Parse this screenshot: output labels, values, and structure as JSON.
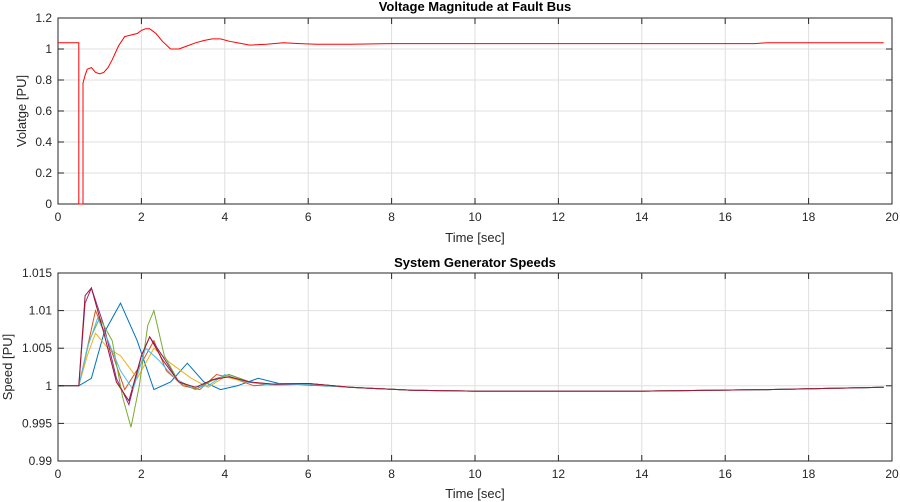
{
  "chart_data": [
    {
      "type": "line",
      "title": "Voltage Magnitude at Fault Bus",
      "xlabel": "Time [sec]",
      "ylabel": "Volatge [PU]",
      "xlim": [
        0,
        20
      ],
      "ylim": [
        0,
        1.2
      ],
      "xticks": [
        "0",
        "2",
        "4",
        "6",
        "8",
        "10",
        "12",
        "14",
        "16",
        "18",
        "20"
      ],
      "yticks": [
        "0",
        "0.2",
        "0.4",
        "0.6",
        "0.8",
        "1",
        "1.2"
      ],
      "grid": true,
      "series": [
        {
          "color": "#ff0000",
          "x": [
            0,
            0.5,
            0.5,
            0.6,
            0.6,
            0.65,
            0.7,
            0.8,
            0.9,
            1.0,
            1.1,
            1.2,
            1.3,
            1.45,
            1.6,
            1.75,
            1.9,
            2.0,
            2.1,
            2.2,
            2.35,
            2.5,
            2.7,
            2.9,
            3.1,
            3.3,
            3.5,
            3.7,
            3.9,
            4.1,
            4.3,
            4.6,
            5.0,
            5.4,
            5.8,
            6.2,
            7.0,
            8.0,
            10.0,
            12.0,
            14.0,
            16.0,
            16.7,
            17.0,
            18.0,
            19.8
          ],
          "y": [
            1.04,
            1.04,
            0,
            0,
            0.78,
            0.83,
            0.87,
            0.88,
            0.85,
            0.84,
            0.85,
            0.88,
            0.93,
            1.02,
            1.08,
            1.09,
            1.1,
            1.12,
            1.13,
            1.13,
            1.1,
            1.05,
            1.0,
            1.0,
            1.02,
            1.04,
            1.055,
            1.065,
            1.065,
            1.05,
            1.04,
            1.025,
            1.03,
            1.04,
            1.035,
            1.03,
            1.03,
            1.035,
            1.035,
            1.035,
            1.035,
            1.035,
            1.035,
            1.04,
            1.04,
            1.04
          ]
        }
      ]
    },
    {
      "type": "line",
      "title": "System Generator Speeds",
      "xlabel": "Time [sec]",
      "ylabel": "Speed [PU]",
      "xlim": [
        0,
        20
      ],
      "ylim": [
        0.99,
        1.015
      ],
      "xticks": [
        "0",
        "2",
        "4",
        "6",
        "8",
        "10",
        "12",
        "14",
        "16",
        "18",
        "20"
      ],
      "yticks": [
        "0.99",
        "0.995",
        "1",
        "1.005",
        "1.01",
        "1.015"
      ],
      "grid": true,
      "series": [
        {
          "color": "#0072bd",
          "x": [
            0,
            0.5,
            0.8,
            1.1,
            1.5,
            1.9,
            2.3,
            2.7,
            3.1,
            3.5,
            3.9,
            4.3,
            4.8,
            5.3,
            6.0,
            7.0,
            8.5,
            10.0,
            14.0,
            17.0,
            19.8
          ],
          "y": [
            1.0,
            1.0,
            1.001,
            1.007,
            1.011,
            1.006,
            0.9995,
            1.0005,
            1.003,
            1.0005,
            0.9995,
            1.0,
            1.001,
            1.0003,
            1.0001,
            0.9998,
            0.9994,
            0.9993,
            0.9993,
            0.9995,
            0.9998
          ]
        },
        {
          "color": "#d95319",
          "x": [
            0,
            0.5,
            0.7,
            0.9,
            1.2,
            1.6,
            2.0,
            2.3,
            2.6,
            3.0,
            3.4,
            3.8,
            4.2,
            4.7,
            5.3,
            6.0,
            7.0,
            8.5,
            10.0,
            14.0,
            17.0,
            19.8
          ],
          "y": [
            1.0,
            1.0,
            1.005,
            1.01,
            1.006,
            0.9995,
            1.003,
            1.006,
            1.002,
            1.0,
            0.9995,
            1.0015,
            1.001,
            1.0,
            1.0003,
            1.0003,
            0.9998,
            0.9994,
            0.9993,
            0.9993,
            0.9995,
            0.9998
          ]
        },
        {
          "color": "#edb120",
          "x": [
            0,
            0.5,
            0.7,
            0.9,
            1.2,
            1.5,
            1.9,
            2.3,
            2.7,
            3.2,
            3.6,
            4.0,
            4.5,
            5.2,
            6.0,
            7.0,
            8.5,
            10.0,
            14.0,
            17.0,
            19.8
          ],
          "y": [
            1.0,
            1.0,
            1.004,
            1.007,
            1.005,
            1.004,
            1.001,
            1.005,
            1.003,
            1.001,
            0.9998,
            1.0012,
            1.0005,
            1.0002,
            1.0002,
            0.9998,
            0.9994,
            0.9993,
            0.9993,
            0.9995,
            0.9998
          ]
        },
        {
          "color": "#7e2f8e",
          "x": [
            0,
            0.5,
            0.65,
            0.8,
            1.1,
            1.4,
            1.7,
            2.0,
            2.2,
            2.5,
            2.9,
            3.3,
            3.7,
            4.1,
            4.6,
            5.2,
            6.0,
            7.0,
            8.5,
            10.0,
            14.0,
            17.0,
            19.8
          ],
          "y": [
            1.0,
            1.0,
            1.011,
            1.013,
            1.008,
            1.001,
            0.9975,
            1.004,
            1.0065,
            1.004,
            1.0005,
            0.9995,
            1.0008,
            1.0015,
            1.0005,
            1.0001,
            1.0003,
            0.9998,
            0.9994,
            0.9993,
            0.9993,
            0.9995,
            0.9998
          ]
        },
        {
          "color": "#77ac30",
          "x": [
            0,
            0.5,
            0.75,
            1.0,
            1.3,
            1.55,
            1.75,
            1.95,
            2.15,
            2.3,
            2.55,
            2.9,
            3.3,
            3.7,
            4.1,
            4.6,
            5.2,
            6.0,
            7.0,
            8.5,
            10.0,
            14.0,
            17.0,
            19.8
          ],
          "y": [
            1.0,
            1.0,
            1.006,
            1.009,
            1.006,
            0.9985,
            0.9945,
            1.0,
            1.008,
            1.01,
            1.004,
            1.0005,
            0.9995,
            1.0007,
            1.0015,
            1.0005,
            1.0001,
            1.0002,
            0.9998,
            0.9994,
            0.9993,
            0.9993,
            0.9995,
            0.9998
          ]
        },
        {
          "color": "#4dbeee",
          "x": [
            0,
            0.5,
            0.7,
            0.95,
            1.2,
            1.5,
            1.8,
            2.1,
            2.4,
            2.8,
            3.2,
            3.6,
            4.0,
            4.5,
            5.1,
            6.0,
            7.0,
            8.5,
            10.0,
            14.0,
            17.0,
            19.8
          ],
          "y": [
            1.0,
            1.0,
            1.005,
            1.009,
            1.006,
            1.002,
            0.9995,
            1.005,
            1.0035,
            1.001,
            0.9998,
            1.0,
            1.0015,
            1.0005,
            1.0001,
            1.0002,
            0.9998,
            0.9994,
            0.9993,
            0.9993,
            0.9995,
            0.9998
          ]
        },
        {
          "color": "#a2142f",
          "x": [
            0,
            0.5,
            0.65,
            0.8,
            1.1,
            1.4,
            1.7,
            2.0,
            2.2,
            2.5,
            2.9,
            3.3,
            3.7,
            4.1,
            4.6,
            5.2,
            6.0,
            7.0,
            8.5,
            10.0,
            14.0,
            17.0,
            19.8
          ],
          "y": [
            1.0,
            1.0,
            1.012,
            1.013,
            1.007,
            1.0005,
            0.998,
            1.004,
            1.0065,
            1.0035,
            1.0005,
            0.9998,
            1.0008,
            1.0012,
            1.0005,
            1.0002,
            1.0003,
            0.9998,
            0.9994,
            0.9993,
            0.9993,
            0.9995,
            0.9998
          ]
        }
      ]
    }
  ]
}
